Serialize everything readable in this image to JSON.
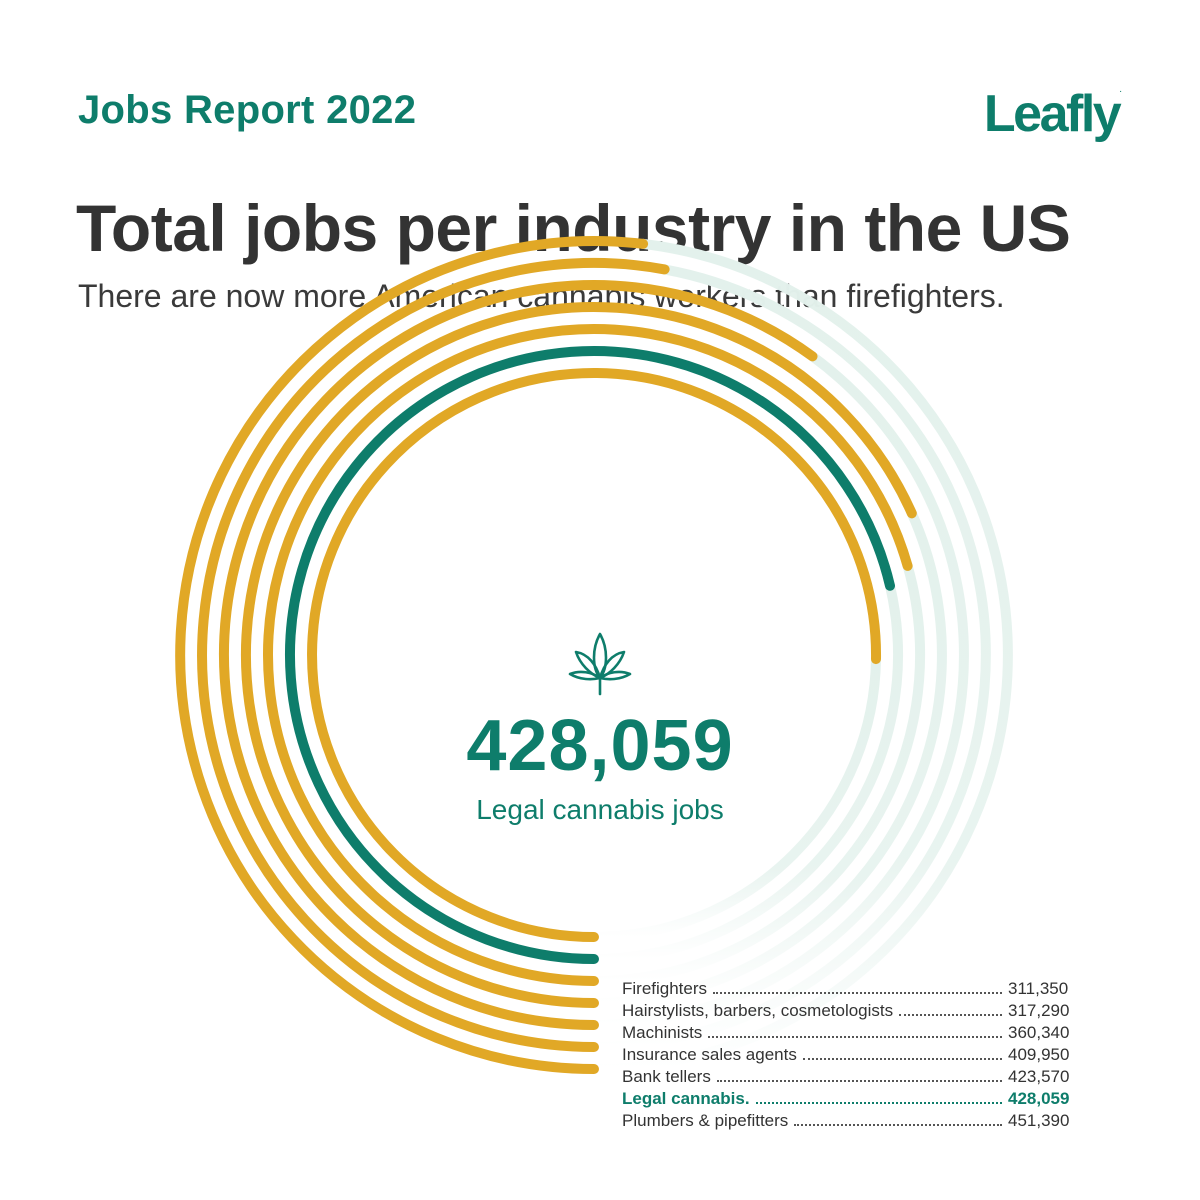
{
  "header": {
    "report_label": "Jobs Report 2022",
    "logo_text": "Leafly",
    "logo_mark": "."
  },
  "title": "Total jobs per industry in the US",
  "subtitle": "There are now more American cannabis workers than firefighters.",
  "center": {
    "value": "428,059",
    "label": "Legal cannabis jobs",
    "icon": "cannabis-leaf-icon"
  },
  "colors": {
    "accent": "#0e7d6b",
    "bar": "#e1a826",
    "highlight": "#0e7d6b",
    "track": "#e3f1ec",
    "text": "#333333"
  },
  "chart_data": {
    "type": "radial-bar",
    "categories": [
      "Firefighters",
      "Hairstylists, barbers, cosmetologists",
      "Machinists",
      "Insurance sales agents",
      "Bank tellers",
      "Legal cannabis",
      "Plumbers & pipefitters"
    ],
    "values": [
      311350,
      317290,
      360340,
      409950,
      423570,
      428059,
      451390
    ],
    "display_labels": [
      "Firefighters",
      "Hairstylists, barbers, cosmetologists",
      "Machinists",
      "Insurance sales agents",
      "Bank tellers",
      "Legal cannabis.",
      "Plumbers & pipefitters"
    ],
    "display_values": [
      "311,350",
      "317,290",
      "360,340",
      "409,950",
      "423,570",
      "428,059",
      "451,390"
    ],
    "highlight": "Legal cannabis"
  }
}
